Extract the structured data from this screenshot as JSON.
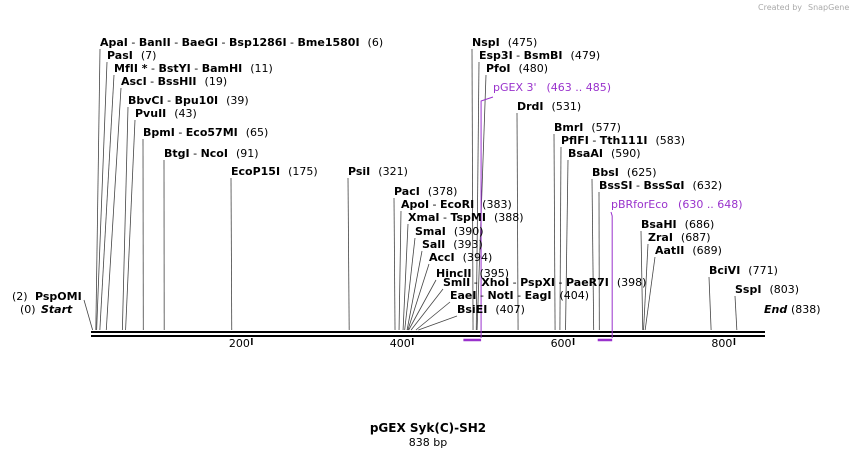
{
  "watermark": "Created by",
  "watermark_brand": "SnapGene",
  "title": "pGEX Syk(C)-SH2",
  "subtitle": "838 bp",
  "length": 838,
  "ticks": [
    "200",
    "400",
    "600",
    "800"
  ],
  "tick_values": [
    200,
    400,
    600,
    800
  ],
  "start_label": "(0)",
  "start_text": "Start",
  "end_label": "End",
  "end_pos": "(838)",
  "sites": [
    {
      "pos": 6,
      "names": [
        "ApaI",
        "BanII",
        "BaeGI",
        "Bsp1286I",
        "Bme1580I"
      ],
      "label": "(6)"
    },
    {
      "pos": 7,
      "names": [
        "PasI"
      ],
      "label": "(7)"
    },
    {
      "pos": 11,
      "names": [
        "MfII *",
        "BstYI",
        "BamHI"
      ],
      "label": "(11)"
    },
    {
      "pos": 19,
      "names": [
        "AscI",
        "BssHII"
      ],
      "label": "(19)"
    },
    {
      "pos": 39,
      "names": [
        "BbvCI",
        "Bpu10I"
      ],
      "label": "(39)"
    },
    {
      "pos": 43,
      "names": [
        "PvuII"
      ],
      "label": "(43)"
    },
    {
      "pos": 65,
      "names": [
        "BpmI",
        "Eco57MI"
      ],
      "label": "(65)"
    },
    {
      "pos": 91,
      "names": [
        "BtgI",
        "NcoI"
      ],
      "label": "(91)"
    },
    {
      "pos": 175,
      "names": [
        "EcoP15I"
      ],
      "label": "(175)"
    },
    {
      "pos": 321,
      "names": [
        "PsiI"
      ],
      "label": "(321)"
    },
    {
      "pos": 378,
      "names": [
        "PacI"
      ],
      "label": "(378)"
    },
    {
      "pos": 383,
      "names": [
        "ApoI",
        "EcoRI"
      ],
      "label": "(383)"
    },
    {
      "pos": 388,
      "names": [
        "XmaI",
        "TspMI"
      ],
      "label": "(388)"
    },
    {
      "pos": 390,
      "names": [
        "SmaI"
      ],
      "label": "(390)"
    },
    {
      "pos": 393,
      "names": [
        "SalI"
      ],
      "label": "(393)"
    },
    {
      "pos": 394,
      "names": [
        "AccI"
      ],
      "label": "(394)"
    },
    {
      "pos": 395,
      "names": [
        "HincII"
      ],
      "label": "(395)"
    },
    {
      "pos": 398,
      "names": [
        "SmlI",
        "XhoI",
        "PspXI",
        "PaeR7I"
      ],
      "label": "(398)"
    },
    {
      "pos": 404,
      "names": [
        "EaeI",
        "NotI",
        "EagI"
      ],
      "label": "(404)"
    },
    {
      "pos": 407,
      "names": [
        "BsiEI"
      ],
      "label": "(407)"
    },
    {
      "pos": 475,
      "names": [
        "NspI"
      ],
      "label": "(475)"
    },
    {
      "pos": 479,
      "names": [
        "Esp3I",
        "BsmBI"
      ],
      "label": "(479)"
    },
    {
      "pos": 480,
      "names": [
        "PfoI"
      ],
      "label": "(480)"
    },
    {
      "pos": 531,
      "names": [
        "DrdI"
      ],
      "label": "(531)"
    },
    {
      "pos": 577,
      "names": [
        "BmrI"
      ],
      "label": "(577)"
    },
    {
      "pos": 583,
      "names": [
        "PflFI",
        "Tth111I"
      ],
      "label": "(583)"
    },
    {
      "pos": 590,
      "names": [
        "BsaAI"
      ],
      "label": "(590)"
    },
    {
      "pos": 625,
      "names": [
        "BbsI"
      ],
      "label": "(625)"
    },
    {
      "pos": 632,
      "names": [
        "BssSI",
        "BssSαI"
      ],
      "label": "(632)"
    },
    {
      "pos": 686,
      "names": [
        "BsaHI"
      ],
      "label": "(686)"
    },
    {
      "pos": 687,
      "names": [
        "ZraI"
      ],
      "label": "(687)"
    },
    {
      "pos": 689,
      "names": [
        "AatII"
      ],
      "label": "(689)"
    },
    {
      "pos": 771,
      "names": [
        "BciVI"
      ],
      "label": "(771)"
    },
    {
      "pos": 803,
      "names": [
        "SspI"
      ],
      "label": "(803)"
    }
  ],
  "psp": {
    "pos": 2,
    "label": "(2)",
    "name": "PspOMI"
  },
  "primers": [
    {
      "name": "pGEX 3'",
      "range": "(463 .. 485)",
      "start": 463,
      "end": 485
    },
    {
      "name": "pBRforEco",
      "range": "(630 .. 648)",
      "start": 630,
      "end": 648
    }
  ],
  "colors": {
    "primer": "#9932cc",
    "line": "#444444",
    "backbone": "#000000"
  }
}
